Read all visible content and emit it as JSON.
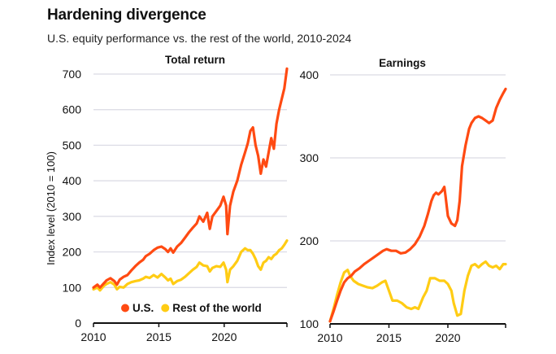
{
  "header": {
    "title": "Hardening divergence",
    "subtitle": "U.S. equity performance vs. the rest of the world, 2010-2024"
  },
  "colors": {
    "us": "#ff4a12",
    "row": "#ffcc14",
    "grid": "#d9d9e3",
    "axis": "#111111"
  },
  "chart_data": [
    {
      "type": "line",
      "title": "Total return",
      "ylabel": "Index level (2010 = 100)",
      "xlabel": "",
      "xlim": [
        2010,
        2024.8
      ],
      "ylim": [
        0,
        700
      ],
      "yticks": [
        0,
        100,
        200,
        300,
        400,
        500,
        600,
        700
      ],
      "xticks": [
        2010,
        2015,
        2020
      ],
      "grid": true,
      "legend": {
        "placement": "bottom-right",
        "entries": [
          "U.S.",
          "Rest of the world"
        ]
      },
      "series": [
        {
          "name": "U.S.",
          "color_key": "us",
          "x": [
            2010.0,
            2010.3,
            2010.5,
            2010.8,
            2011.0,
            2011.3,
            2011.6,
            2011.8,
            2012.0,
            2012.3,
            2012.6,
            2012.9,
            2013.2,
            2013.5,
            2013.8,
            2014.0,
            2014.3,
            2014.6,
            2014.9,
            2015.2,
            2015.5,
            2015.7,
            2015.9,
            2016.1,
            2016.4,
            2016.7,
            2017.0,
            2017.3,
            2017.6,
            2017.9,
            2018.1,
            2018.4,
            2018.7,
            2018.9,
            2019.1,
            2019.4,
            2019.7,
            2019.95,
            2020.15,
            2020.25,
            2020.45,
            2020.7,
            2021.0,
            2021.3,
            2021.6,
            2021.8,
            2022.0,
            2022.2,
            2022.4,
            2022.6,
            2022.8,
            2023.0,
            2023.2,
            2023.4,
            2023.6,
            2023.8,
            2024.0,
            2024.2,
            2024.4,
            2024.6,
            2024.8
          ],
          "y": [
            100,
            108,
            100,
            112,
            120,
            126,
            118,
            108,
            122,
            130,
            135,
            148,
            160,
            170,
            178,
            188,
            195,
            205,
            212,
            215,
            208,
            200,
            210,
            198,
            215,
            225,
            240,
            255,
            268,
            280,
            300,
            285,
            310,
            265,
            300,
            315,
            330,
            355,
            330,
            250,
            330,
            370,
            400,
            445,
            480,
            505,
            540,
            550,
            500,
            470,
            420,
            460,
            440,
            480,
            520,
            490,
            560,
            600,
            630,
            660,
            715
          ]
        },
        {
          "name": "Rest of the world",
          "color_key": "row",
          "x": [
            2010.0,
            2010.3,
            2010.5,
            2010.8,
            2011.0,
            2011.3,
            2011.6,
            2011.8,
            2012.0,
            2012.3,
            2012.6,
            2012.9,
            2013.2,
            2013.5,
            2013.8,
            2014.0,
            2014.3,
            2014.6,
            2014.9,
            2015.2,
            2015.5,
            2015.7,
            2015.9,
            2016.1,
            2016.4,
            2016.7,
            2017.0,
            2017.3,
            2017.6,
            2017.9,
            2018.1,
            2018.4,
            2018.7,
            2018.9,
            2019.1,
            2019.4,
            2019.7,
            2019.95,
            2020.15,
            2020.25,
            2020.45,
            2020.7,
            2021.0,
            2021.3,
            2021.6,
            2021.8,
            2022.0,
            2022.2,
            2022.4,
            2022.6,
            2022.8,
            2023.0,
            2023.2,
            2023.4,
            2023.6,
            2023.8,
            2024.0,
            2024.2,
            2024.4,
            2024.6,
            2024.8
          ],
          "y": [
            95,
            100,
            92,
            105,
            110,
            115,
            108,
            95,
            102,
            100,
            110,
            115,
            118,
            120,
            125,
            130,
            127,
            135,
            128,
            138,
            128,
            120,
            125,
            110,
            118,
            122,
            130,
            140,
            150,
            158,
            170,
            162,
            160,
            145,
            155,
            160,
            158,
            170,
            150,
            115,
            150,
            160,
            175,
            200,
            210,
            205,
            205,
            195,
            180,
            160,
            150,
            170,
            175,
            185,
            180,
            190,
            195,
            205,
            210,
            220,
            232
          ]
        }
      ]
    },
    {
      "type": "line",
      "title": "Earnings",
      "ylabel": "",
      "xlabel": "",
      "xlim": [
        2010,
        2024.9
      ],
      "ylim": [
        100,
        400
      ],
      "yticks": [
        100,
        200,
        300,
        400
      ],
      "xticks": [
        2010,
        2015,
        2020
      ],
      "grid": true,
      "series": [
        {
          "name": "U.S.",
          "color_key": "us",
          "x": [
            2010.0,
            2010.3,
            2010.6,
            2010.9,
            2011.2,
            2011.5,
            2011.8,
            2012.1,
            2012.5,
            2012.9,
            2013.3,
            2013.7,
            2014.1,
            2014.5,
            2014.8,
            2015.2,
            2015.6,
            2016.0,
            2016.4,
            2016.8,
            2017.2,
            2017.6,
            2018.0,
            2018.3,
            2018.6,
            2018.8,
            2019.0,
            2019.2,
            2019.5,
            2019.7,
            2019.8,
            2020.0,
            2020.3,
            2020.6,
            2020.8,
            2021.0,
            2021.2,
            2021.5,
            2021.8,
            2022.0,
            2022.3,
            2022.6,
            2022.9,
            2023.2,
            2023.5,
            2023.8,
            2024.1,
            2024.4,
            2024.7,
            2024.9
          ],
          "y": [
            103,
            115,
            128,
            140,
            150,
            155,
            158,
            163,
            167,
            172,
            176,
            180,
            184,
            188,
            190,
            188,
            188,
            185,
            186,
            190,
            196,
            205,
            218,
            232,
            248,
            255,
            258,
            256,
            260,
            265,
            254,
            230,
            221,
            218,
            225,
            248,
            290,
            315,
            335,
            342,
            348,
            350,
            348,
            345,
            342,
            345,
            360,
            370,
            378,
            383
          ]
        },
        {
          "name": "Rest of the world",
          "color_key": "row",
          "x": [
            2010.0,
            2010.3,
            2010.6,
            2010.9,
            2011.2,
            2011.5,
            2011.7,
            2012.0,
            2012.4,
            2012.8,
            2013.2,
            2013.6,
            2014.0,
            2014.4,
            2014.7,
            2015.0,
            2015.3,
            2015.7,
            2016.1,
            2016.5,
            2016.9,
            2017.2,
            2017.5,
            2017.9,
            2018.2,
            2018.5,
            2018.9,
            2019.3,
            2019.7,
            2020.0,
            2020.3,
            2020.5,
            2020.8,
            2021.1,
            2021.4,
            2021.7,
            2022.0,
            2022.3,
            2022.6,
            2022.9,
            2023.2,
            2023.5,
            2023.8,
            2024.1,
            2024.4,
            2024.7,
            2024.9
          ],
          "y": [
            103,
            118,
            135,
            150,
            162,
            165,
            158,
            152,
            148,
            146,
            144,
            143,
            146,
            150,
            152,
            140,
            128,
            128,
            125,
            120,
            118,
            120,
            118,
            132,
            140,
            155,
            155,
            152,
            152,
            148,
            140,
            125,
            110,
            112,
            140,
            158,
            170,
            172,
            168,
            172,
            175,
            170,
            168,
            170,
            166,
            172,
            172
          ]
        }
      ]
    }
  ]
}
